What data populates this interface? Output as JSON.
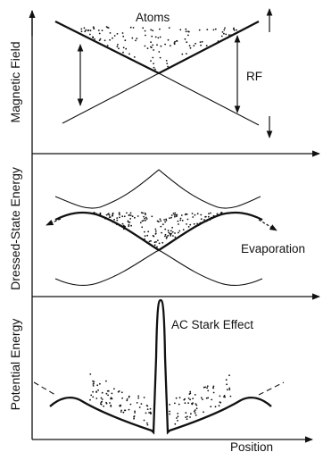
{
  "panels": [
    {
      "id": "magnetic-field",
      "ylabel": "Magnetic Field",
      "labels": {
        "atoms": "Atoms",
        "rf": "RF"
      }
    },
    {
      "id": "dressed-state-energy",
      "ylabel": "Dressed-State Energy",
      "labels": {
        "evaporation": "Evaporation"
      }
    },
    {
      "id": "potential-energy",
      "ylabel": "Potential Energy",
      "labels": {
        "ac_stark": "AC Stark Effect"
      }
    }
  ],
  "xlabel": "Position",
  "colors": {
    "ink": "#111111",
    "background": "#ffffff"
  }
}
